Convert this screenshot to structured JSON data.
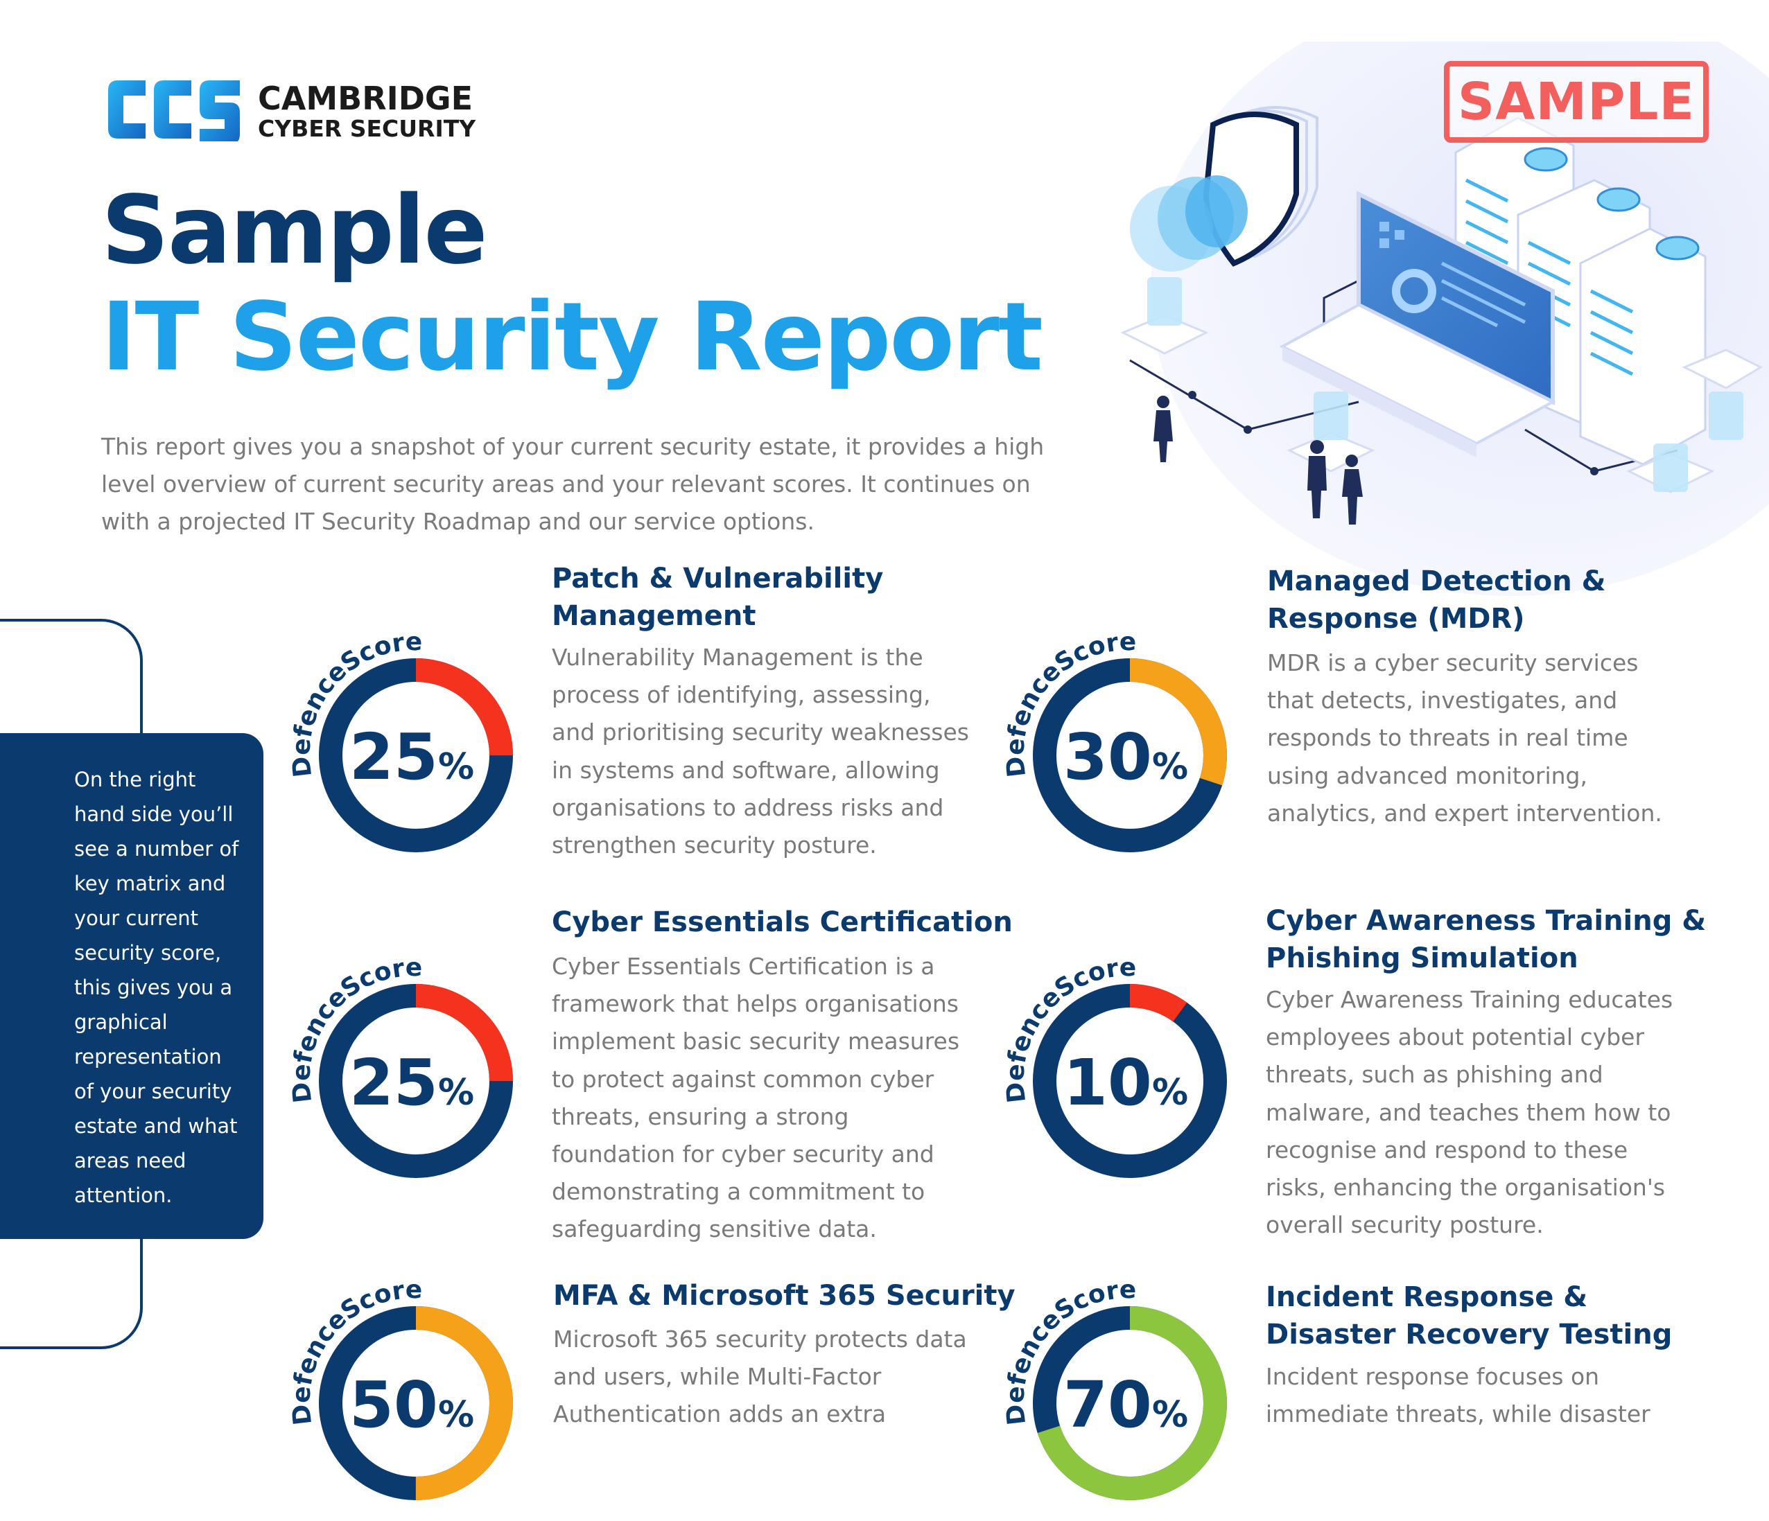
{
  "brand": {
    "logo_letters": "CCS",
    "name_line1": "CAMBRIDGE",
    "name_line2": "CYBER SECURITY",
    "primary_color": "#0b3a6e",
    "accent_color": "#1ea1e8"
  },
  "stamp": "SAMPLE",
  "title": {
    "line1": "Sample",
    "line2": "IT Security Report"
  },
  "intro": "This report gives you a snapshot of your current security estate, it provides a high level overview of current security areas and your relevant scores. It continues on with a projected IT Security Roadmap and our service options.",
  "callout": "On the right hand side you’ll see a number of key matrix and your current security score, this gives you a graphical representation of your security estate and what areas need attention.",
  "gauge_label": "DefenceScore",
  "sections": [
    {
      "title_lines": [
        "Patch & Vulnerability",
        "Management"
      ],
      "score": 25,
      "score_text": "25",
      "color": "#f5321e",
      "body_lines": [
        "Vulnerability Management is the",
        "process of identifying, assessing,",
        "and prioritising security weaknesses",
        "in systems and software, allowing",
        "organisations to address risks and",
        "strengthen security posture."
      ]
    },
    {
      "title_lines": [
        "Managed Detection &",
        "Response (MDR)"
      ],
      "score": 30,
      "score_text": "30",
      "color": "#f5a11a",
      "body_lines": [
        "MDR is a cyber security services",
        "that detects, investigates, and",
        "responds to threats in real time",
        "using advanced monitoring,",
        "analytics, and expert intervention."
      ]
    },
    {
      "title_lines": [
        "Cyber Essentials Certification"
      ],
      "score": 25,
      "score_text": "25",
      "color": "#f5321e",
      "body_lines": [
        "Cyber Essentials Certification is a",
        "framework that helps organisations",
        "implement basic security measures",
        "to protect against common cyber",
        "threats, ensuring a strong",
        "foundation for cyber security and",
        "demonstrating a commitment to",
        "safeguarding sensitive data."
      ]
    },
    {
      "title_lines": [
        "Cyber Awareness Training &",
        "Phishing Simulation"
      ],
      "score": 10,
      "score_text": "10",
      "color": "#f5321e",
      "body_lines": [
        "Cyber Awareness Training educates",
        "employees about potential cyber",
        "threats, such as phishing and",
        "malware, and teaches them how to",
        "recognise and respond to these",
        "risks, enhancing the organisation's",
        "overall security posture."
      ]
    },
    {
      "title_lines": [
        "MFA & Microsoft 365 Security"
      ],
      "score": 50,
      "score_text": "50",
      "color": "#f5a11a",
      "body_lines": [
        "Microsoft 365 security protects data",
        "and users, while Multi-Factor",
        "Authentication adds an extra"
      ]
    },
    {
      "title_lines": [
        "Incident Response &",
        "Disaster Recovery Testing"
      ],
      "score": 70,
      "score_text": "70",
      "color": "#8cc63f",
      "body_lines": [
        "Incident response focuses on",
        "immediate threats, while disaster"
      ]
    }
  ]
}
